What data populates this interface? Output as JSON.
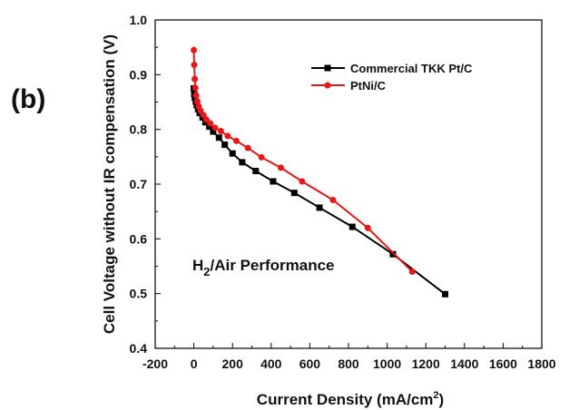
{
  "panel_label": "(b)",
  "chart_data": {
    "type": "line",
    "title": "",
    "xlabel": "Current Density (mA/cm",
    "xlabel_sup": "2",
    "xlabel_end": ")",
    "ylabel": "Cell Voltage without IR compensation  (V)",
    "xlim": [
      -200,
      1800
    ],
    "ylim": [
      0.4,
      1.0
    ],
    "xticks": [
      -200,
      0,
      200,
      400,
      600,
      800,
      1000,
      1200,
      1400,
      1600,
      1800
    ],
    "yticks": [
      0.4,
      0.5,
      0.6,
      0.7,
      0.8,
      0.9,
      1.0
    ],
    "xtick_labels": [
      "-200",
      "0",
      "200",
      "400",
      "600",
      "800",
      "1000",
      "1200",
      "1400",
      "1600",
      "1800"
    ],
    "ytick_labels": [
      "0.4",
      "0.5",
      "0.6",
      "0.7",
      "0.8",
      "0.9",
      "1.0"
    ],
    "grid": false,
    "legend_position": "top-right",
    "annotation": {
      "main": "H",
      "sub": "2",
      "rest": "/Air Performance"
    },
    "series": [
      {
        "name": "Commercial TKK Pt/C",
        "color": "#000000",
        "marker": "square",
        "x": [
          0,
          2,
          5,
          10,
          15,
          22,
          30,
          45,
          60,
          80,
          100,
          130,
          160,
          200,
          250,
          320,
          410,
          520,
          650,
          820,
          1030,
          1300
        ],
        "y": [
          0.875,
          0.865,
          0.858,
          0.851,
          0.844,
          0.837,
          0.83,
          0.822,
          0.813,
          0.805,
          0.796,
          0.785,
          0.772,
          0.756,
          0.74,
          0.724,
          0.705,
          0.684,
          0.657,
          0.622,
          0.572,
          0.499
        ]
      },
      {
        "name": "PtNi/C",
        "color": "#e81616",
        "marker": "circle",
        "x": [
          0,
          2,
          5,
          8,
          12,
          18,
          25,
          35,
          50,
          65,
          85,
          110,
          140,
          175,
          220,
          280,
          350,
          450,
          560,
          720,
          900,
          1130
        ],
        "y": [
          0.945,
          0.918,
          0.892,
          0.876,
          0.862,
          0.851,
          0.842,
          0.834,
          0.826,
          0.818,
          0.811,
          0.803,
          0.797,
          0.788,
          0.779,
          0.766,
          0.749,
          0.73,
          0.705,
          0.671,
          0.62,
          0.54
        ]
      }
    ]
  }
}
